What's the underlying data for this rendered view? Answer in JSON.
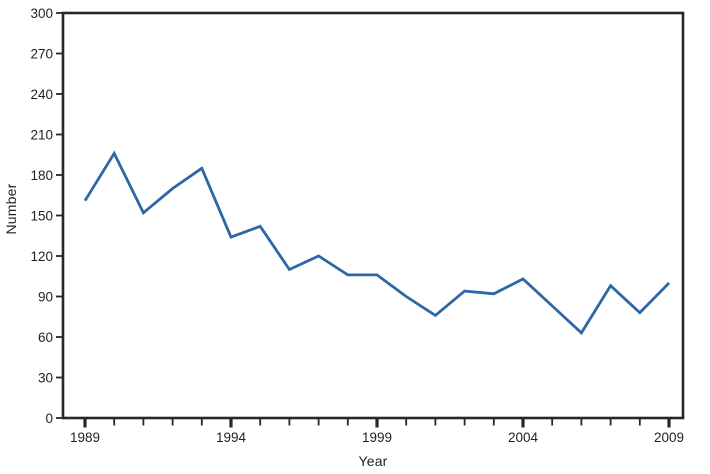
{
  "figure": {
    "background": "#ffffff",
    "axis_color": "#2a2526",
    "text_color": "#231f20"
  },
  "chart_data": {
    "type": "line",
    "title": "",
    "xlabel": "Year",
    "ylabel": "Number",
    "x": [
      1989,
      1990,
      1991,
      1992,
      1993,
      1994,
      1995,
      1996,
      1997,
      1998,
      1999,
      2000,
      2001,
      2002,
      2003,
      2004,
      2005,
      2006,
      2007,
      2008,
      2009
    ],
    "series": [
      {
        "name": "Number",
        "color": "#2d67a6",
        "values": [
          161,
          196,
          152,
          170,
          185,
          134,
          142,
          110,
          120,
          106,
          106,
          90,
          76,
          94,
          92,
          103,
          83,
          63,
          98,
          78,
          100
        ]
      }
    ],
    "ylim": [
      0,
      300
    ],
    "y_ticks": [
      0,
      30,
      60,
      90,
      120,
      150,
      180,
      210,
      240,
      270,
      300
    ],
    "x_major_ticks": [
      1989,
      1994,
      1999,
      2004,
      2009
    ],
    "x_minor_ticks_every_year": true,
    "grid": false,
    "legend": "none"
  }
}
